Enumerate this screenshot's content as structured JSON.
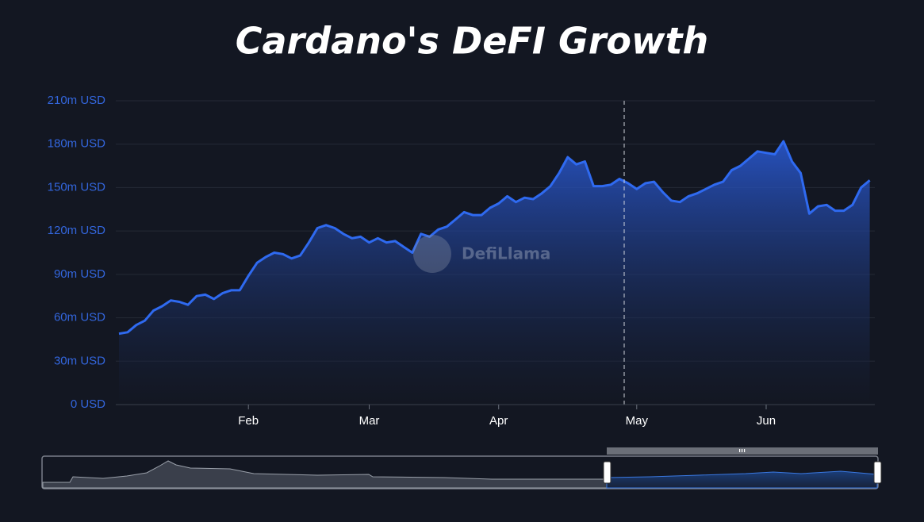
{
  "chart_data": {
    "type": "area",
    "title": "Cardano's DeFI Growth",
    "watermark": "DefiLlama",
    "color": "#2f6af0",
    "grid": true,
    "categories": [
      null,
      null,
      null,
      null,
      null,
      null,
      null,
      null,
      null,
      null,
      null,
      null,
      null,
      null,
      null,
      "Feb",
      null,
      null,
      null,
      null,
      null,
      null,
      null,
      null,
      null,
      null,
      null,
      null,
      null,
      "Mar",
      null,
      null,
      null,
      null,
      null,
      null,
      null,
      null,
      null,
      null,
      null,
      null,
      null,
      null,
      "Apr",
      null,
      null,
      null,
      null,
      null,
      null,
      null,
      null,
      null,
      null,
      null,
      null,
      null,
      null,
      null,
      "May",
      null,
      null,
      null,
      null,
      null,
      null,
      null,
      null,
      null,
      null,
      null,
      null,
      null,
      null,
      "Jun",
      null,
      null,
      null,
      null,
      null,
      null,
      null,
      null,
      null,
      null,
      null,
      null
    ],
    "values": [
      49,
      50,
      55,
      58,
      65,
      68,
      72,
      71,
      69,
      75,
      76,
      73,
      77,
      79,
      79,
      89,
      98,
      102,
      105,
      104,
      101,
      103,
      112,
      122,
      124,
      122,
      118,
      115,
      116,
      112,
      115,
      112,
      113,
      109,
      105,
      118,
      116,
      121,
      123,
      128,
      133,
      131,
      131,
      136,
      139,
      144,
      140,
      143,
      142,
      146,
      151,
      160,
      171,
      166,
      168,
      151,
      151,
      152,
      156,
      153,
      149,
      153,
      154,
      147,
      141,
      140,
      144,
      146,
      149,
      152,
      154,
      162,
      165,
      170,
      175,
      174,
      173,
      182,
      168,
      160,
      132,
      137,
      138,
      134,
      134,
      138,
      150,
      155
    ],
    "ylim": [
      0,
      210
    ],
    "yticks": [
      {
        "value": 0,
        "label": "0 USD"
      },
      {
        "value": 30,
        "label": "30m USD"
      },
      {
        "value": 60,
        "label": "60m USD"
      },
      {
        "value": 90,
        "label": "90m USD"
      },
      {
        "value": 120,
        "label": "120m USD"
      },
      {
        "value": 150,
        "label": "150m USD"
      },
      {
        "value": 180,
        "label": "180m USD"
      },
      {
        "value": 210,
        "label": "210m USD"
      }
    ]
  }
}
